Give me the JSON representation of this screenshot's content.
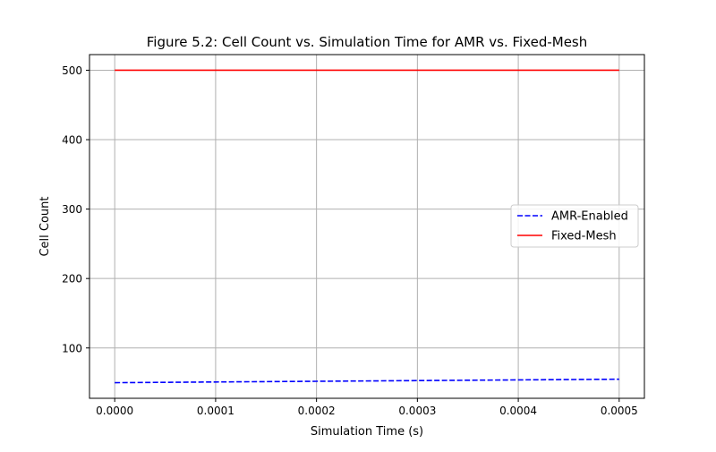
{
  "chart_data": {
    "type": "line",
    "title": "Figure 5.2: Cell Count vs. Simulation Time for AMR vs. Fixed-Mesh",
    "xlabel": "Simulation Time (s)",
    "ylabel": "Cell Count",
    "xlim": [
      -2.5e-05,
      0.000525
    ],
    "ylim": [
      27.5,
      522.5
    ],
    "xticks": [
      0.0,
      0.0001,
      0.0002,
      0.0003,
      0.0004,
      0.0005
    ],
    "xtick_labels": [
      "0.0000",
      "0.0001",
      "0.0002",
      "0.0003",
      "0.0004",
      "0.0005"
    ],
    "yticks": [
      100,
      200,
      300,
      400,
      500
    ],
    "ytick_labels": [
      "100",
      "200",
      "300",
      "400",
      "500"
    ],
    "grid": true,
    "legend_position": "center-right",
    "series": [
      {
        "name": "AMR-Enabled",
        "color": "#0000ff",
        "dash": "dashed",
        "x": [
          0.0,
          0.0001,
          0.0002,
          0.0003,
          0.0004,
          0.0005
        ],
        "values": [
          50,
          51,
          52,
          53,
          54,
          55
        ]
      },
      {
        "name": "Fixed-Mesh",
        "color": "#ff0000",
        "dash": "solid",
        "x": [
          0.0,
          0.0001,
          0.0002,
          0.0003,
          0.0004,
          0.0005
        ],
        "values": [
          500,
          500,
          500,
          500,
          500,
          500
        ]
      }
    ]
  }
}
